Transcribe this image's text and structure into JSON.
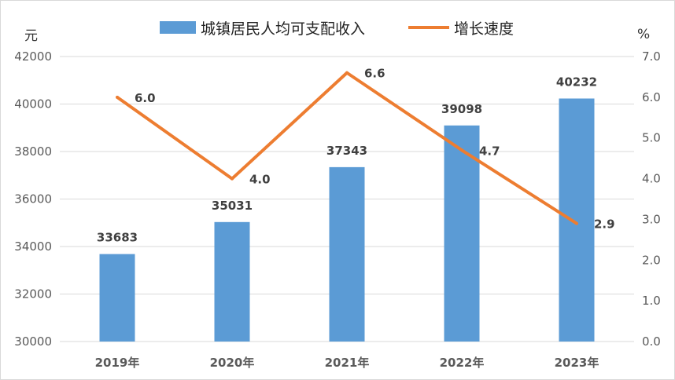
{
  "chart_data": {
    "type": "bar",
    "categories": [
      "2019年",
      "2020年",
      "2021年",
      "2022年",
      "2023年"
    ],
    "series": [
      {
        "name": "城镇居民人均可支配收入",
        "type": "bar",
        "axis": "left",
        "color": "#5b9bd5",
        "values": [
          33683,
          35031,
          37343,
          39098,
          40232
        ],
        "labels": [
          "33683",
          "35031",
          "37343",
          "39098",
          "40232"
        ]
      },
      {
        "name": "增长速度",
        "type": "line",
        "axis": "right",
        "color": "#ed7d31",
        "values": [
          6.0,
          4.0,
          6.6,
          4.7,
          2.9
        ],
        "labels": [
          "6.0",
          "4.0",
          "6.6",
          "4.7",
          "2.9"
        ]
      }
    ],
    "y_left": {
      "unit": "元",
      "range": [
        30000,
        42000
      ],
      "ticks": [
        "30000",
        "32000",
        "34000",
        "36000",
        "38000",
        "40000",
        "42000"
      ]
    },
    "y_right": {
      "unit": "%",
      "range": [
        0,
        7
      ],
      "ticks": [
        "0.0",
        "1.0",
        "2.0",
        "3.0",
        "4.0",
        "5.0",
        "6.0",
        "7.0"
      ]
    },
    "grid": true,
    "legend": "top"
  }
}
